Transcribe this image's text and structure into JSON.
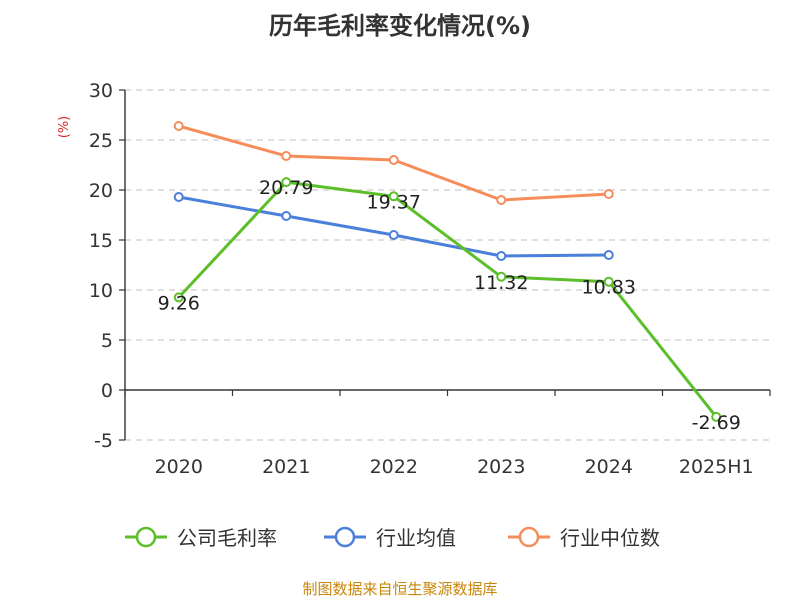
{
  "chart_data": {
    "type": "line",
    "title": "历年毛利率变化情况(%)",
    "ylabel": "(%)",
    "categories": [
      "2020",
      "2021",
      "2022",
      "2023",
      "2024",
      "2025H1"
    ],
    "y_ticks": [
      "30",
      "25",
      "20",
      "15",
      "10",
      "5",
      "0",
      "-5"
    ],
    "ylim": [
      -5,
      30
    ],
    "grid": true,
    "legend_placement": "bottom",
    "series": [
      {
        "name": "公司毛利率",
        "color": "#5cbf2a",
        "values": [
          9.26,
          20.79,
          19.37,
          11.32,
          10.83,
          -2.69
        ],
        "labels": [
          "9.26",
          "20.79",
          "19.37",
          "11.32",
          "10.83",
          "-2.69"
        ]
      },
      {
        "name": "行业均值",
        "color": "#4a7fdb",
        "values": [
          19.3,
          17.4,
          15.5,
          13.4,
          13.5,
          null
        ]
      },
      {
        "name": "行业中位数",
        "color": "#f58d5a",
        "values": [
          26.4,
          23.4,
          23.0,
          19.0,
          19.6,
          null
        ]
      }
    ]
  },
  "source": "制图数据来自恒生聚源数据库"
}
